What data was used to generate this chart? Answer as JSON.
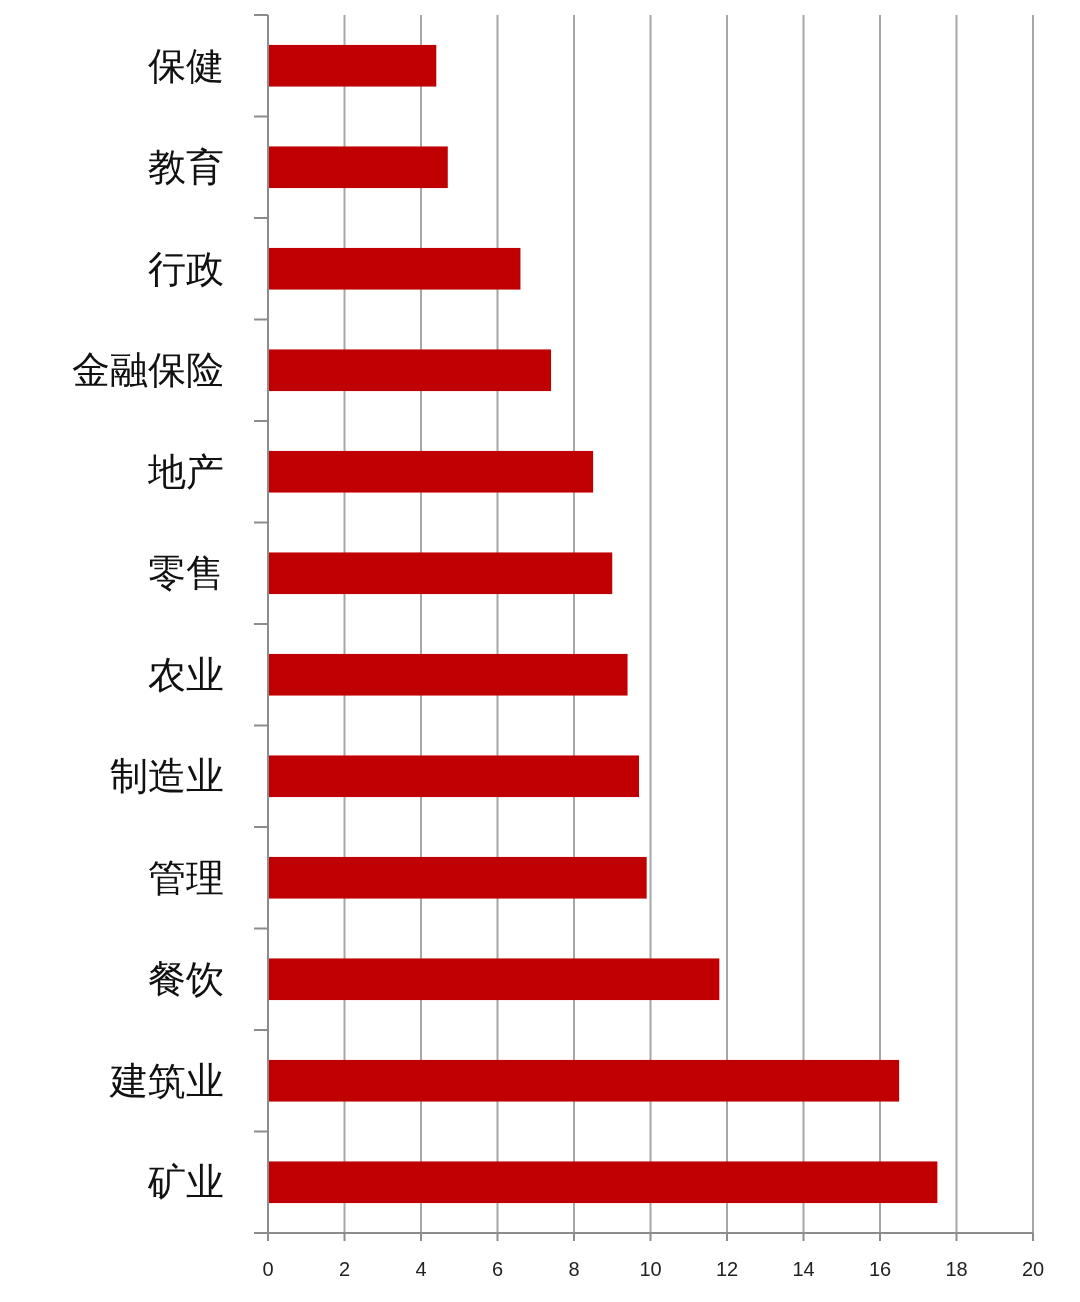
{
  "chart_data": {
    "type": "bar",
    "orientation": "horizontal",
    "categories": [
      "保健",
      "教育",
      "行政",
      "金融保险",
      "地产",
      "零售",
      "农业",
      "制造业",
      "管理",
      "餐饮",
      "建筑业",
      "矿业"
    ],
    "values": [
      4.4,
      4.7,
      6.6,
      7.4,
      8.5,
      9.0,
      9.4,
      9.7,
      9.9,
      11.8,
      16.5,
      17.5
    ],
    "color": "#c00000",
    "xlim": [
      0,
      20
    ],
    "xticks": [
      0,
      2,
      4,
      6,
      8,
      10,
      12,
      14,
      16,
      18,
      20
    ],
    "grid": "x"
  }
}
